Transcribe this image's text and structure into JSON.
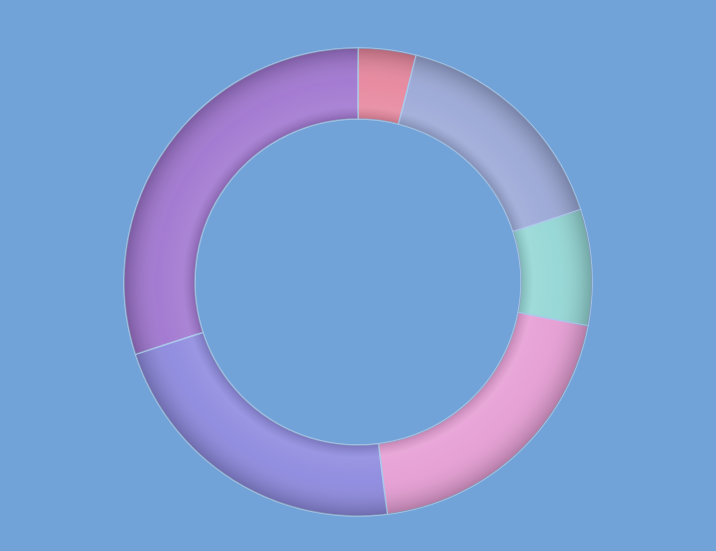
{
  "chart_data": {
    "type": "pie",
    "variant": "donut",
    "title": "",
    "start_angle_deg": 0,
    "direction": "clockwise",
    "legend": "none",
    "values": [
      4,
      16,
      8,
      20,
      22,
      30
    ],
    "colors": [
      "#e6859c",
      "#9aa7d6",
      "#92d6d4",
      "#e59cd3",
      "#8c88de",
      "#9f74cf"
    ]
  },
  "background": "#72a3d8"
}
